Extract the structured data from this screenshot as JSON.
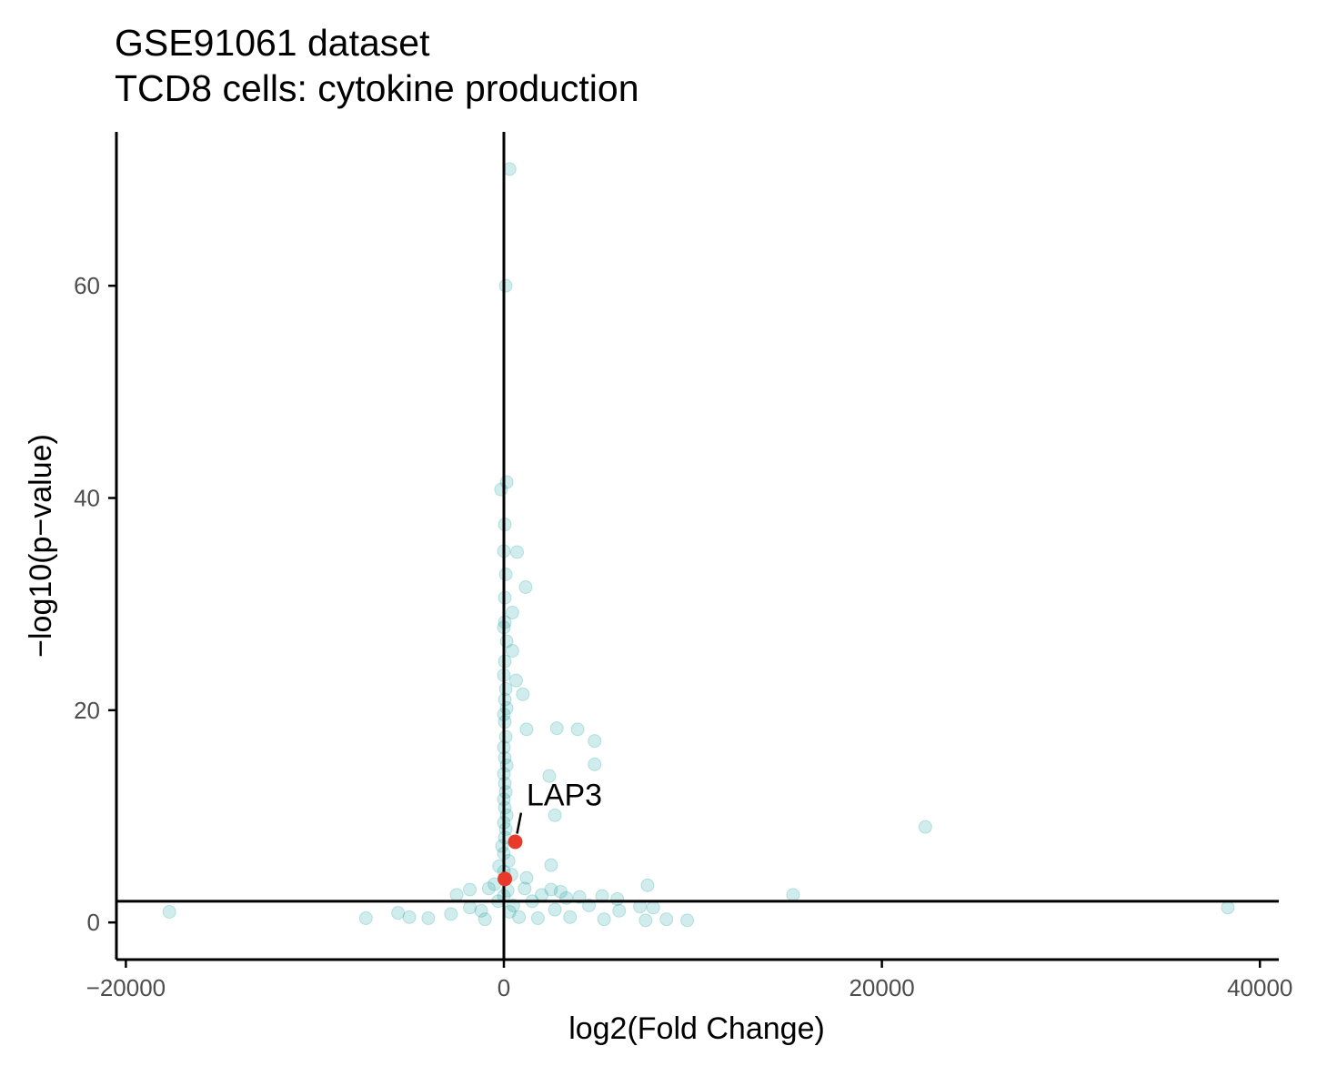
{
  "chart_data": {
    "type": "scatter",
    "title": "GSE91061 dataset",
    "subtitle": "TCD8 cells: cytokine production",
    "xlabel": "log2(Fold Change)",
    "ylabel": "−log10(p−value)",
    "xlim": [
      -20500,
      41000
    ],
    "ylim": [
      -3.5,
      74.5
    ],
    "x_ticks": [
      -20000,
      0,
      20000,
      40000
    ],
    "x_tick_labels": [
      "−20000",
      "0",
      "20000",
      "40000"
    ],
    "y_ticks": [
      0,
      20,
      40,
      60
    ],
    "y_tick_labels": [
      "0",
      "20",
      "40",
      "60"
    ],
    "reference_lines": {
      "vertical_x": 0,
      "horizontal_y": 2
    },
    "grid": false,
    "legend": "none",
    "colors": {
      "background": "#1a9fa0",
      "highlight": "#e8392b",
      "axis": "#000000"
    },
    "highlighted_points": [
      {
        "x": 600,
        "y": 7.6
      },
      {
        "x": 50,
        "y": 4.1
      }
    ],
    "annotations": [
      {
        "text": "LAP3",
        "x": 1200,
        "y": 10.5
      }
    ],
    "series": [
      {
        "values": [
          {
            "x": 300,
            "y": 71
          },
          {
            "x": 100,
            "y": 60
          },
          {
            "x": 150,
            "y": 41.5
          },
          {
            "x": -150,
            "y": 40.8
          },
          {
            "x": 50,
            "y": 37.5
          },
          {
            "x": 0,
            "y": 35
          },
          {
            "x": 700,
            "y": 34.9
          },
          {
            "x": 100,
            "y": 32.8
          },
          {
            "x": 1150,
            "y": 31.6
          },
          {
            "x": 50,
            "y": 30.6
          },
          {
            "x": 450,
            "y": 29.2
          },
          {
            "x": 50,
            "y": 28.3
          },
          {
            "x": 0,
            "y": 27.8
          },
          {
            "x": 150,
            "y": 26.5
          },
          {
            "x": 450,
            "y": 25.6
          },
          {
            "x": 50,
            "y": 24.6
          },
          {
            "x": 0,
            "y": 23.3
          },
          {
            "x": 650,
            "y": 22.8
          },
          {
            "x": 100,
            "y": 22
          },
          {
            "x": 1000,
            "y": 21.5
          },
          {
            "x": 50,
            "y": 21
          },
          {
            "x": 150,
            "y": 20.2
          },
          {
            "x": 0,
            "y": 19.6
          },
          {
            "x": 50,
            "y": 18.9
          },
          {
            "x": 1200,
            "y": 18.2
          },
          {
            "x": 2800,
            "y": 18.3
          },
          {
            "x": 3900,
            "y": 18.2
          },
          {
            "x": 4800,
            "y": 17.1
          },
          {
            "x": 4800,
            "y": 14.9
          },
          {
            "x": 100,
            "y": 17.5
          },
          {
            "x": 0,
            "y": 16.5
          },
          {
            "x": 50,
            "y": 15.5
          },
          {
            "x": 150,
            "y": 14.8
          },
          {
            "x": 0,
            "y": 14
          },
          {
            "x": 2400,
            "y": 13.8
          },
          {
            "x": 50,
            "y": 13.1
          },
          {
            "x": 100,
            "y": 12.3
          },
          {
            "x": 0,
            "y": 11.6
          },
          {
            "x": 50,
            "y": 10.8
          },
          {
            "x": 150,
            "y": 10.1
          },
          {
            "x": 2700,
            "y": 10.1
          },
          {
            "x": 0,
            "y": 9.4
          },
          {
            "x": 100,
            "y": 8.8
          },
          {
            "x": 22300,
            "y": 9
          },
          {
            "x": 50,
            "y": 8
          },
          {
            "x": -100,
            "y": 7.2
          },
          {
            "x": 0,
            "y": 6.5
          },
          {
            "x": 250,
            "y": 5.8
          },
          {
            "x": -250,
            "y": 5.3
          },
          {
            "x": 2500,
            "y": 5.4
          },
          {
            "x": 0,
            "y": 4.8
          },
          {
            "x": 400,
            "y": 4.5
          },
          {
            "x": 1200,
            "y": 4.2
          },
          {
            "x": -500,
            "y": 3.6
          },
          {
            "x": 7600,
            "y": 3.5
          },
          {
            "x": 15300,
            "y": 2.6
          },
          {
            "x": 38300,
            "y": 1.4
          },
          {
            "x": -17700,
            "y": 1
          },
          {
            "x": -7300,
            "y": 0.4
          },
          {
            "x": -5600,
            "y": 0.9
          },
          {
            "x": -5000,
            "y": 0.5
          },
          {
            "x": -4000,
            "y": 0.4
          },
          {
            "x": -2800,
            "y": 0.8
          },
          {
            "x": -1800,
            "y": 1.4
          },
          {
            "x": -1200,
            "y": 1.1
          },
          {
            "x": -2500,
            "y": 2.6
          },
          {
            "x": -1800,
            "y": 3.1
          },
          {
            "x": -800,
            "y": 3.2
          },
          {
            "x": 2000,
            "y": 2.6
          },
          {
            "x": 3000,
            "y": 2.9
          },
          {
            "x": 4000,
            "y": 2.4
          },
          {
            "x": 5200,
            "y": 2.5
          },
          {
            "x": 6000,
            "y": 2.2
          },
          {
            "x": 7200,
            "y": 1.5
          },
          {
            "x": 7900,
            "y": 1.4
          },
          {
            "x": 8600,
            "y": 0.3
          },
          {
            "x": 9700,
            "y": 0.2
          },
          {
            "x": 7500,
            "y": 0.2
          },
          {
            "x": 5300,
            "y": 0.3
          },
          {
            "x": 6100,
            "y": 1.1
          },
          {
            "x": 3500,
            "y": 0.5
          },
          {
            "x": 2700,
            "y": 1.2
          },
          {
            "x": 3300,
            "y": 2.3
          },
          {
            "x": 4500,
            "y": 1.6
          },
          {
            "x": 1500,
            "y": 2
          },
          {
            "x": 2500,
            "y": 3.1
          },
          {
            "x": -300,
            "y": 2
          },
          {
            "x": 800,
            "y": 0.5
          },
          {
            "x": 1800,
            "y": 0.4
          },
          {
            "x": 500,
            "y": 1.6
          },
          {
            "x": 1100,
            "y": 3.2
          },
          {
            "x": -1000,
            "y": 0.3
          },
          {
            "x": 0,
            "y": 2.5
          },
          {
            "x": 300,
            "y": 1
          },
          {
            "x": 200,
            "y": 3
          }
        ]
      }
    ]
  }
}
